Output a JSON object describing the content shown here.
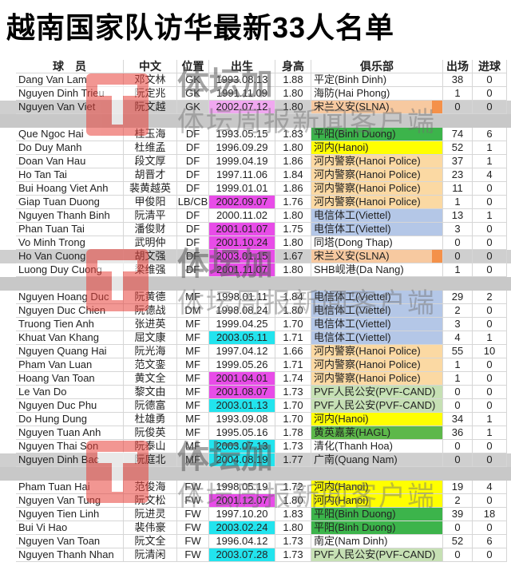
{
  "title": "越南国家队访华最新33人名单",
  "watermark": {
    "brand": "体坛加",
    "tagline": "体坛周报新闻客户端"
  },
  "table": {
    "header": [
      "球　员",
      "中文",
      "位置",
      "出生",
      "身高",
      "俱乐部",
      "出场",
      "进球"
    ],
    "groups": [
      {
        "rows": [
          {
            "cells": [
              "Dang Van Lam",
              "邓文林",
              "GK",
              "1993.08.13",
              "1.88",
              "平定(Binh Dinh)",
              "38",
              "0"
            ]
          },
          {
            "cells": [
              "Nguyen Dinh Trieu",
              "阮定兆",
              "GK",
              "1991.11.09",
              "1.80",
              "海防(Hai Phong)",
              "1",
              "0"
            ]
          },
          {
            "cells": [
              "Nguyen Van Viet",
              "阮文越",
              "GK",
              "2002.07.12",
              "1.80",
              "宋兰义安(SLNA)",
              "0",
              "0"
            ],
            "row_bg": "#cfcfcf",
            "birth_bg": "#f0a8f0",
            "club_bg": "#f7c9a0",
            "club_end": "#f4914a"
          }
        ]
      },
      {
        "rows": [
          {
            "cells": [
              "Que Ngoc Hai",
              "桂玉海",
              "DF",
              "1993.05.15",
              "1.83",
              "平阳(Binh Duong)",
              "74",
              "6"
            ],
            "club_bg": "#3cb44b"
          },
          {
            "cells": [
              "Do Duy Manh",
              "杜维孟",
              "DF",
              "1996.09.29",
              "1.80",
              "河内(Hanoi)",
              "52",
              "1"
            ],
            "club_bg": "#ffff00"
          },
          {
            "cells": [
              "Doan Van Hau",
              "段文厚",
              "DF",
              "1999.04.19",
              "1.86",
              "河内警察(Hanoi Police)",
              "37",
              "1"
            ],
            "club_bg": "#fbd9a3"
          },
          {
            "cells": [
              "Ho Tan Tai",
              "胡晋才",
              "DF",
              "1997.11.06",
              "1.84",
              "河内警察(Hanoi Police)",
              "23",
              "4"
            ],
            "club_bg": "#fbd9a3"
          },
          {
            "cells": [
              "Bui Hoang Viet Anh",
              "裴黄越英",
              "DF",
              "1999.01.01",
              "1.86",
              "河内警察(Hanoi Police)",
              "11",
              "0"
            ],
            "club_bg": "#fbd9a3"
          },
          {
            "cells": [
              "Giap Tuan Duong",
              "甲俊阳",
              "LB/CB",
              "2002.09.07",
              "1.76",
              "河内警察(Hanoi Police)",
              "1",
              "0"
            ],
            "birth_bg": "#e84ce8",
            "club_bg": "#fbd9a3"
          },
          {
            "cells": [
              "Nguyen Thanh Binh",
              "阮清平",
              "DF",
              "2000.11.02",
              "1.80",
              "电信体工(Viettel)",
              "13",
              "1"
            ],
            "club_bg": "#b4c7e7"
          },
          {
            "cells": [
              "Phan Tuan Tai",
              "潘俊财",
              "DF",
              "2001.01.07",
              "1.75",
              "电信体工(Viettel)",
              "3",
              "0"
            ],
            "birth_bg": "#e84ce8",
            "club_bg": "#b4c7e7"
          },
          {
            "cells": [
              "Vo Minh Trong",
              "武明仲",
              "DF",
              "2001.10.24",
              "1.80",
              "同塔(Dong Thap)",
              "0",
              "0"
            ],
            "birth_bg": "#e84ce8"
          },
          {
            "cells": [
              "Ho Van Cuong",
              "胡文强",
              "DF",
              "2003.01.15",
              "1.67",
              "宋兰义安(SLNA)",
              "0",
              "0"
            ],
            "row_bg": "#cfcfcf",
            "birth_bg": "#e84ce8",
            "club_bg": "#f7c9a0",
            "club_end": "#f4914a"
          },
          {
            "cells": [
              "Luong Duy Cuong",
              "梁维强",
              "DF",
              "2001.11.07",
              "1.80",
              "SHB岘港(Da Nang)",
              "1",
              "0"
            ],
            "birth_bg": "#e84ce8"
          }
        ]
      },
      {
        "rows": [
          {
            "cells": [
              "Nguyen Hoang Duc",
              "阮黄德",
              "MF",
              "1998.01.11",
              "1.84",
              "电信体工(Viettel)",
              "29",
              "2"
            ],
            "club_bg": "#b4c7e7"
          },
          {
            "cells": [
              "Nguyen Duc Chien",
              "阮德战",
              "DM",
              "1998.08.24",
              "1.80",
              "电信体工(Viettel)",
              "2",
              "0"
            ],
            "club_bg": "#b4c7e7"
          },
          {
            "cells": [
              "Truong Tien Anh",
              "张进英",
              "MF",
              "1999.04.25",
              "1.70",
              "电信体工(Viettel)",
              "3",
              "0"
            ],
            "club_bg": "#b4c7e7"
          },
          {
            "cells": [
              "Khuat Van Khang",
              "屈文康",
              "MF",
              "2003.05.11",
              "1.71",
              "电信体工(Viettel)",
              "4",
              "1"
            ],
            "birth_bg": "#22e4ee",
            "club_bg": "#b4c7e7"
          },
          {
            "cells": [
              "Nguyen Quang Hai",
              "阮光海",
              "MF",
              "1997.04.12",
              "1.66",
              "河内警察(Hanoi Police)",
              "55",
              "10"
            ],
            "club_bg": "#fbd9a3"
          },
          {
            "cells": [
              "Pham Van Luan",
              "范文銮",
              "MF",
              "1999.05.26",
              "1.71",
              "河内警察(Hanoi Police)",
              "1",
              "0"
            ],
            "club_bg": "#fbd9a3"
          },
          {
            "cells": [
              "Hoang Van Toan",
              "黄文全",
              "MF",
              "2001.04.01",
              "1.74",
              "河内警察(Hanoi Police)",
              "1",
              "0"
            ],
            "birth_bg": "#e84ce8",
            "club_bg": "#fbd9a3"
          },
          {
            "cells": [
              "Le Van Do",
              "黎文由",
              "MF",
              "2001.08.07",
              "1.73",
              "PVF人民公安(PVF-CAND)",
              "0",
              "0"
            ],
            "birth_bg": "#e84ce8",
            "club_bg": "#c6e0b4"
          },
          {
            "cells": [
              "Nguyen Duc Phu",
              "阮德富",
              "MF",
              "2003.01.13",
              "1.70",
              "PVF人民公安(PVF-CAND)",
              "0",
              "0"
            ],
            "birth_bg": "#22e4ee",
            "club_bg": "#c6e0b4"
          },
          {
            "cells": [
              "Do Hung Dung",
              "杜雄勇",
              "MF",
              "1993.09.08",
              "1.70",
              "河内(Hanoi)",
              "34",
              "1"
            ],
            "club_bg": "#ffff00"
          },
          {
            "cells": [
              "Nguyen Tuan Anh",
              "阮俊英",
              "MF",
              "1995.05.16",
              "1.78",
              "黄英嘉莱(HAGL)",
              "36",
              "1"
            ],
            "club_bg": "#5db84a"
          },
          {
            "cells": [
              "Nguyen Thai Son",
              "阮泰山",
              "MF",
              "2003.07.13",
              "1.73",
              "清化(Thanh Hoa)",
              "0",
              "0"
            ],
            "birth_bg": "#22e4ee"
          },
          {
            "cells": [
              "Nguyen Dinh Bac",
              "阮庭北",
              "MF",
              "2004.08.19",
              "1.77",
              "广南(Quang Nam)",
              "0",
              "0"
            ],
            "row_bg": "#cfcfcf",
            "birth_bg": "#22e4ee"
          }
        ]
      },
      {
        "rows": [
          {
            "cells": [
              "Pham Tuan Hai",
              "范俊海",
              "FW",
              "1998.05.19",
              "1.72",
              "河内(Hanoi)",
              "19",
              "4"
            ],
            "club_bg": "#ffff00"
          },
          {
            "cells": [
              "Nguyen Van Tung",
              "阮文松",
              "FW",
              "2001.12.07",
              "1.80",
              "河内(Hanoi)",
              "2",
              "0"
            ],
            "birth_bg": "#e84ce8",
            "club_bg": "#ffff00"
          },
          {
            "cells": [
              "Nguyen Tien Linh",
              "阮进灵",
              "FW",
              "1997.10.20",
              "1.83",
              "平阳(Binh Duong)",
              "39",
              "18"
            ],
            "club_bg": "#3cb44b"
          },
          {
            "cells": [
              "Bui Vi Hao",
              "裴伟豪",
              "FW",
              "2003.02.24",
              "1.80",
              "平阳(Binh Duong)",
              "0",
              "0"
            ],
            "birth_bg": "#22e4ee",
            "club_bg": "#3cb44b"
          },
          {
            "cells": [
              "Nguyen Van Toan",
              "阮文全",
              "FW",
              "1996.04.12",
              "1.73",
              "南定(Nam Dinh)",
              "52",
              "6"
            ]
          },
          {
            "cells": [
              "Nguyen Thanh Nhan",
              "阮清闲",
              "FW",
              "2003.07.28",
              "1.73",
              "PVF人民公安(PVF-CAND)",
              "0",
              "0"
            ],
            "birth_bg": "#22e4ee",
            "club_bg": "#c6e0b4"
          }
        ]
      }
    ]
  }
}
